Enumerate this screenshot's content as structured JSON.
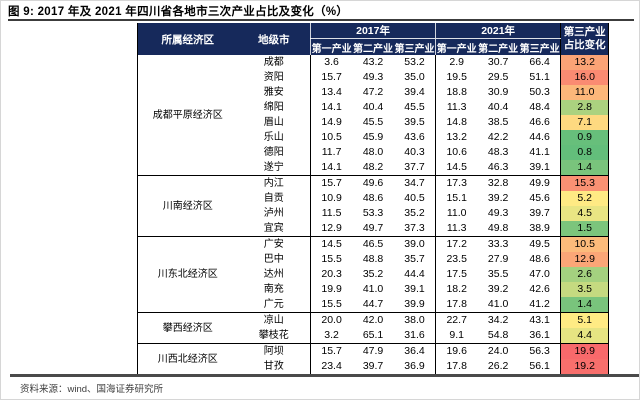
{
  "title": "图 9: 2017 年及 2021 年四川省各地市三次产业占比及变化（%）",
  "source": "资料来源：wind、国海证券研究所",
  "colors": {
    "header_bg": "#16295b",
    "header_text": "#ffffff",
    "scale_min_green": "#63BE7B",
    "scale_mid_yellow": "#FFEB84",
    "scale_max_red": "#F8696B",
    "title_rule": "#3c3c3c"
  },
  "table": {
    "headers": {
      "region": "所属经济区",
      "city": "地级市",
      "year1": "2017年",
      "year2": "2021年",
      "sub": [
        "第一产业",
        "第二产业",
        "第三产业"
      ],
      "change_line1": "第三产业",
      "change_line2": "占比变化"
    },
    "groups": [
      {
        "region": "成都平原经济区",
        "rows": [
          {
            "city": "成都",
            "y2017": [
              "3.6",
              "43.2",
              "53.2"
            ],
            "y2021": [
              "2.9",
              "30.7",
              "66.4"
            ],
            "change": "13.2",
            "change_color": "#FBA376"
          },
          {
            "city": "资阳",
            "y2017": [
              "15.7",
              "49.3",
              "35.0"
            ],
            "y2021": [
              "19.5",
              "29.5",
              "51.1"
            ],
            "change": "16.0",
            "change_color": "#FA8B72"
          },
          {
            "city": "雅安",
            "y2017": [
              "13.4",
              "47.2",
              "39.4"
            ],
            "y2021": [
              "18.8",
              "30.9",
              "50.3"
            ],
            "change": "11.0",
            "change_color": "#FCB77A"
          },
          {
            "city": "绵阳",
            "y2017": [
              "14.1",
              "40.4",
              "45.5"
            ],
            "y2021": [
              "11.3",
              "40.4",
              "48.4"
            ],
            "change": "2.8",
            "change_color": "#ABD27F"
          },
          {
            "city": "眉山",
            "y2017": [
              "14.9",
              "45.5",
              "39.5"
            ],
            "y2021": [
              "14.8",
              "38.5",
              "46.6"
            ],
            "change": "7.1",
            "change_color": "#FED980"
          },
          {
            "city": "乐山",
            "y2017": [
              "10.5",
              "45.9",
              "43.6"
            ],
            "y2021": [
              "13.2",
              "42.2",
              "44.6"
            ],
            "change": "0.9",
            "change_color": "#67BF7B"
          },
          {
            "city": "德阳",
            "y2017": [
              "11.7",
              "48.0",
              "40.3"
            ],
            "y2021": [
              "10.6",
              "48.3",
              "41.1"
            ],
            "change": "0.8",
            "change_color": "#63BE7B"
          },
          {
            "city": "遂宁",
            "y2017": [
              "14.1",
              "48.2",
              "37.7"
            ],
            "y2021": [
              "14.5",
              "46.3",
              "39.1"
            ],
            "change": "1.4",
            "change_color": "#79C47C"
          }
        ]
      },
      {
        "region": "川南经济区",
        "rows": [
          {
            "city": "内江",
            "y2017": [
              "15.7",
              "49.6",
              "34.7"
            ],
            "y2021": [
              "17.3",
              "32.8",
              "49.9"
            ],
            "change": "15.3",
            "change_color": "#FA9173"
          },
          {
            "city": "自贡",
            "y2017": [
              "10.9",
              "48.6",
              "40.5"
            ],
            "y2021": [
              "15.1",
              "39.2",
              "45.6"
            ],
            "change": "5.2",
            "change_color": "#FFEA84"
          },
          {
            "city": "泸州",
            "y2017": [
              "11.5",
              "53.3",
              "35.2"
            ],
            "y2021": [
              "11.0",
              "49.3",
              "39.7"
            ],
            "change": "4.5",
            "change_color": "#E9E583"
          },
          {
            "city": "宜宾",
            "y2017": [
              "12.9",
              "49.7",
              "37.3"
            ],
            "y2021": [
              "11.3",
              "49.8",
              "38.9"
            ],
            "change": "1.5",
            "change_color": "#7CC57C"
          }
        ]
      },
      {
        "region": "川东北经济区",
        "rows": [
          {
            "city": "广安",
            "y2017": [
              "14.5",
              "46.5",
              "39.0"
            ],
            "y2021": [
              "17.2",
              "33.3",
              "49.5"
            ],
            "change": "10.5",
            "change_color": "#FCBB7B"
          },
          {
            "city": "巴中",
            "y2017": [
              "15.5",
              "48.8",
              "35.7"
            ],
            "y2021": [
              "23.5",
              "27.9",
              "48.6"
            ],
            "change": "12.9",
            "change_color": "#FBA677"
          },
          {
            "city": "达州",
            "y2017": [
              "20.3",
              "35.2",
              "44.4"
            ],
            "y2021": [
              "17.5",
              "35.5",
              "47.0"
            ],
            "change": "2.6",
            "change_color": "#A4D17F"
          },
          {
            "city": "南充",
            "y2017": [
              "19.9",
              "41.0",
              "39.1"
            ],
            "y2021": [
              "18.2",
              "39.2",
              "42.6"
            ],
            "change": "3.5",
            "change_color": "#C5DA80"
          },
          {
            "city": "广元",
            "y2017": [
              "15.5",
              "44.7",
              "39.9"
            ],
            "y2021": [
              "17.8",
              "41.0",
              "41.2"
            ],
            "change": "1.4",
            "change_color": "#79C47C"
          }
        ]
      },
      {
        "region": "攀西经济区",
        "rows": [
          {
            "city": "凉山",
            "y2017": [
              "20.0",
              "42.0",
              "38.0"
            ],
            "y2021": [
              "22.7",
              "34.2",
              "43.1"
            ],
            "change": "5.1",
            "change_color": "#FFEB84"
          },
          {
            "city": "攀枝花",
            "y2017": [
              "3.2",
              "65.1",
              "31.6"
            ],
            "y2021": [
              "9.1",
              "54.8",
              "36.1"
            ],
            "change": "4.4",
            "change_color": "#E6E482"
          }
        ]
      },
      {
        "region": "川西北经济区",
        "rows": [
          {
            "city": "阿坝",
            "y2017": [
              "15.7",
              "47.9",
              "36.4"
            ],
            "y2021": [
              "19.6",
              "24.0",
              "56.3"
            ],
            "change": "19.9",
            "change_color": "#F8696B"
          },
          {
            "city": "甘孜",
            "y2017": [
              "23.4",
              "39.7",
              "36.9"
            ],
            "y2021": [
              "17.8",
              "26.2",
              "56.1"
            ],
            "change": "19.2",
            "change_color": "#F86F6C"
          }
        ]
      }
    ]
  }
}
